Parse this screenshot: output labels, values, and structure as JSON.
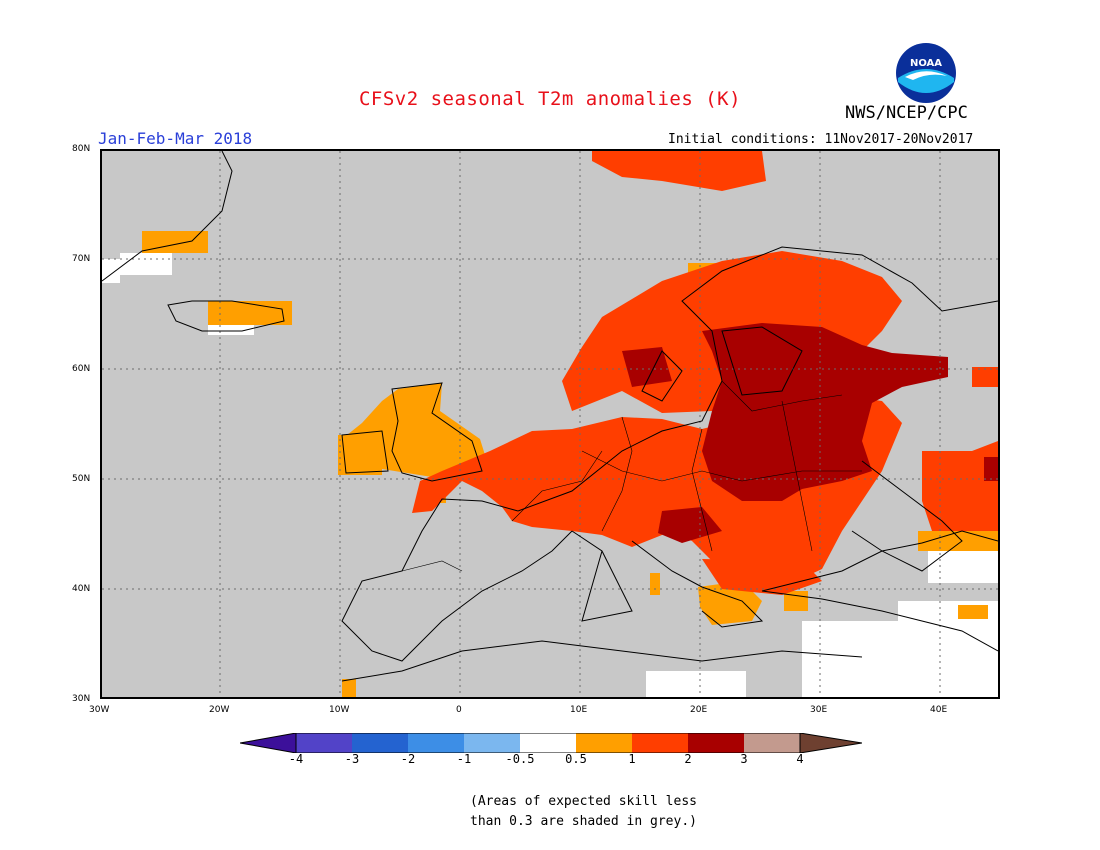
{
  "header": {
    "title": "CFSv2 seasonal T2m anomalies (K)",
    "org": "NWS/NCEP/CPC",
    "season": "Jan-Feb-Mar 2018",
    "initial_conditions": "Initial conditions: 11Nov2017-20Nov2017",
    "logo_text": "NOAA"
  },
  "axes": {
    "lat_ticks": [
      "80N",
      "70N",
      "60N",
      "50N",
      "40N",
      "30N"
    ],
    "lon_ticks": [
      "30W",
      "20W",
      "10W",
      "0",
      "10E",
      "20E",
      "30E",
      "40E"
    ]
  },
  "legend": {
    "ticks": [
      "-4",
      "-3",
      "-2",
      "-1",
      "-0.5",
      "0.5",
      "1",
      "2",
      "3",
      "4"
    ],
    "colors": [
      "#3c109a",
      "#5243c8",
      "#2463d0",
      "#3d8ee6",
      "#7bb7ef",
      "#ffffff",
      "#ff9f00",
      "#ff3e00",
      "#a80000",
      "#c39a8e",
      "#6e4030"
    ]
  },
  "colors": {
    "grey_skill": "#c8c8c8",
    "anomaly_0_5_to_1": "#ff9f00",
    "anomaly_1_to_2": "#ff3e00",
    "anomaly_2_to_3": "#a80000"
  },
  "note": {
    "line1": "(Areas of expected skill less",
    "line2": "than 0.3 are shaded in grey.)"
  }
}
